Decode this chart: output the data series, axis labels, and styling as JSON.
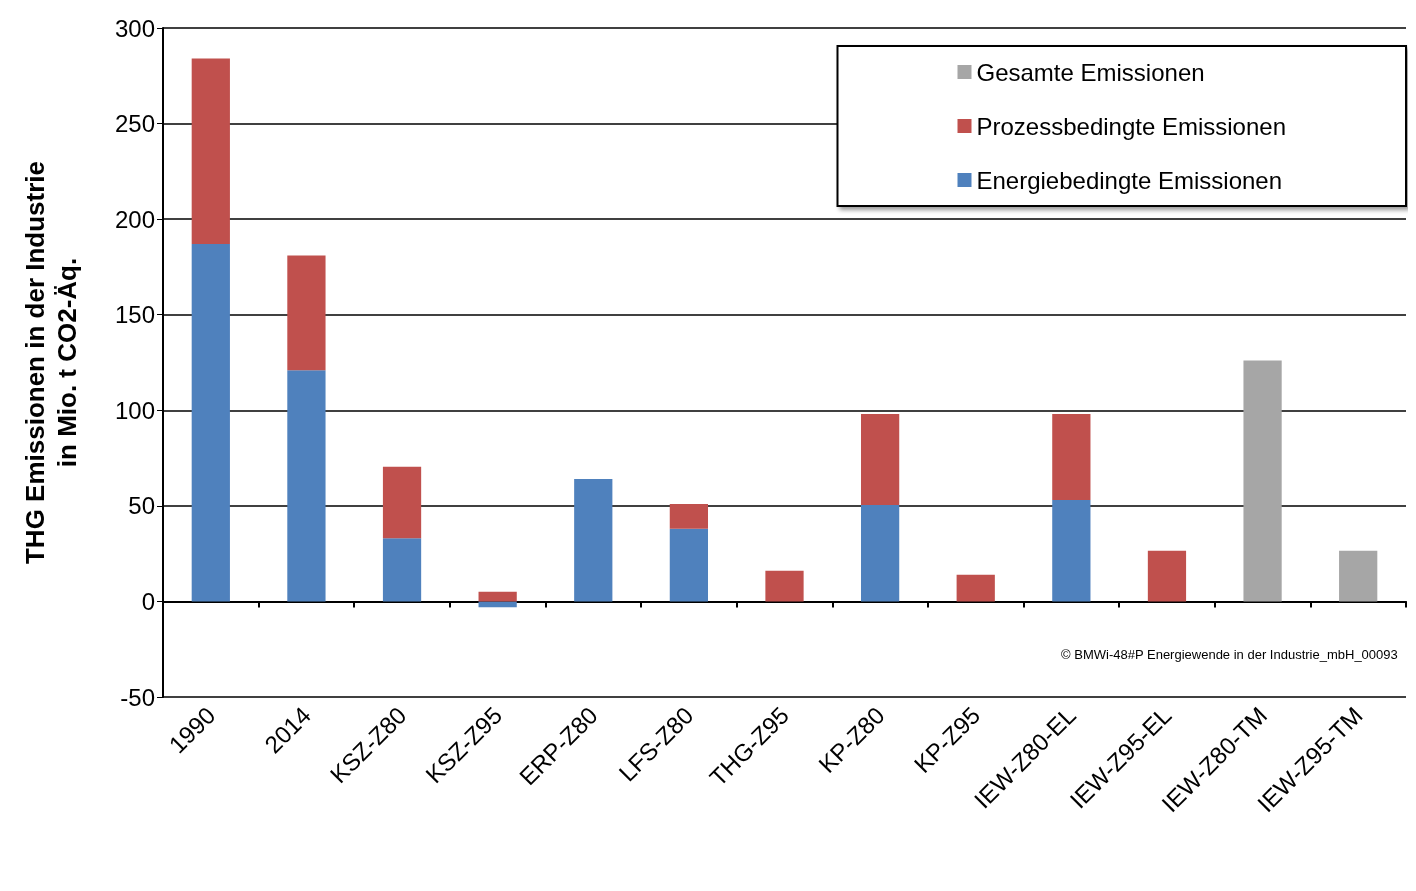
{
  "chart_data": {
    "type": "bar",
    "stacked": true,
    "ylabel": "THG Emissionen in der Industrie\nin Mio. t CO2-Äq.",
    "categories": [
      "1990",
      "2014",
      "KSZ-Z80",
      "KSZ-Z95",
      "ERP-Z80",
      "LFS-Z80",
      "THG-Z95",
      "KP-Z80",
      "KP-Z95",
      "IEW-Z80-EL",
      "IEW-Z95-EL",
      "IEW-Z80-TM",
      "IEW-Z95-TM"
    ],
    "series": [
      {
        "name": "Energiebedingte Emissionen",
        "color": "#4f81bd",
        "values": [
          187,
          121,
          33,
          -3,
          64,
          38,
          null,
          50.5,
          null,
          53,
          null,
          null,
          null
        ]
      },
      {
        "name": "Prozessbedingte Emissionen",
        "color": "#c0504d",
        "values": [
          97,
          60,
          37.5,
          5,
          null,
          13,
          16,
          47.5,
          14,
          45,
          26.5,
          null,
          null
        ]
      },
      {
        "name": "Gesamte Emissionen",
        "color": "#a6a6a6",
        "values": [
          null,
          null,
          null,
          null,
          null,
          null,
          null,
          null,
          null,
          null,
          null,
          126,
          26.5
        ]
      }
    ],
    "ylim": [
      -50,
      300
    ],
    "yticks": [
      -50,
      0,
      50,
      100,
      150,
      200,
      250,
      300
    ],
    "grid": "y",
    "legend": "top right",
    "annotations": [
      "© BMWi-48#P Energiewende in der Industrie_mbH_00093"
    ]
  }
}
